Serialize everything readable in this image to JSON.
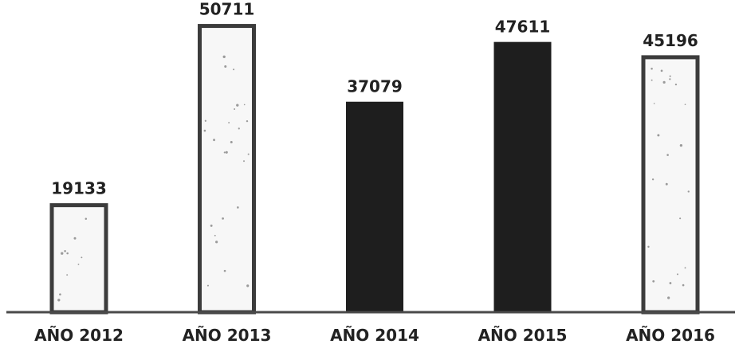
{
  "chart_data": {
    "type": "bar",
    "categories": [
      "AÑO 2012",
      "AÑO 2013",
      "AÑO 2014",
      "AÑO 2015",
      "AÑO 2016"
    ],
    "values": [
      19133,
      50711,
      37079,
      47611,
      45196
    ],
    "data_labels": [
      "19133",
      "50711",
      "37079",
      "47611",
      "45196"
    ],
    "bar_styles": [
      "outlined-speckled",
      "outlined-speckled",
      "solid-dark",
      "solid-dark",
      "outlined-speckled"
    ],
    "title": "",
    "xlabel": "",
    "ylabel": "",
    "ylim": [
      0,
      55000
    ],
    "grid": false,
    "legend": "none",
    "colors": {
      "solid_fill": "#1e1e1e",
      "outline": "#3c3c3c",
      "hollow_fill": "#f7f7f7",
      "speckle": "#9a9a9a",
      "baseline": "#4a4a4a",
      "text": "#222222"
    }
  }
}
